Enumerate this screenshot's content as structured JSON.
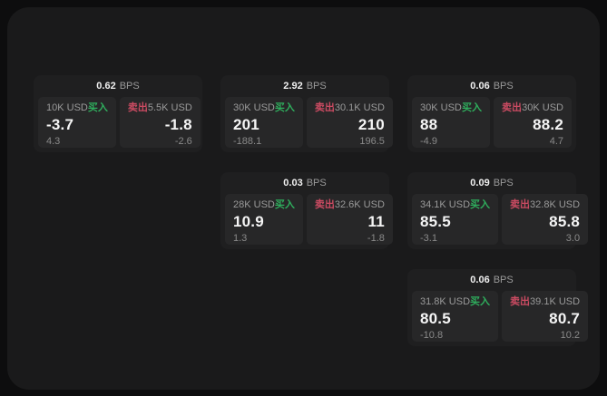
{
  "labels": {
    "bps": "BPS",
    "buy": "买入",
    "sell": "卖出"
  },
  "colors": {
    "page_background": "#0d0d0e",
    "surface": "#1a1a1b",
    "card": "#1f1f20",
    "panel": "#272728",
    "buy_accent": "#2fae5d",
    "sell_accent": "#cb4b62",
    "text_primary": "#f5f5f5",
    "text_secondary": "#9a9a9a"
  },
  "cards": [
    {
      "bps": "0.62",
      "buy": {
        "amount": "10K USD",
        "value": "-3.7",
        "sub": "4.3"
      },
      "sell": {
        "amount": "5.5K USD",
        "value": "-1.8",
        "sub": "-2.6"
      }
    },
    {
      "bps": "2.92",
      "buy": {
        "amount": "30K USD",
        "value": "201",
        "sub": "-188.1"
      },
      "sell": {
        "amount": "30.1K USD",
        "value": "210",
        "sub": "196.5"
      }
    },
    {
      "bps": "0.06",
      "buy": {
        "amount": "30K USD",
        "value": "88",
        "sub": "-4.9"
      },
      "sell": {
        "amount": "30K USD",
        "value": "88.2",
        "sub": "4.7"
      }
    },
    {
      "bps": "0.03",
      "buy": {
        "amount": "28K USD",
        "value": "10.9",
        "sub": "1.3"
      },
      "sell": {
        "amount": "32.6K USD",
        "value": "11",
        "sub": "-1.8"
      }
    },
    {
      "bps": "0.09",
      "buy": {
        "amount": "34.1K USD",
        "value": "85.5",
        "sub": "-3.1"
      },
      "sell": {
        "amount": "32.8K USD",
        "value": "85.8",
        "sub": "3.0"
      }
    },
    {
      "bps": "0.06",
      "buy": {
        "amount": "31.8K USD",
        "value": "80.5",
        "sub": "-10.8"
      },
      "sell": {
        "amount": "39.1K USD",
        "value": "80.7",
        "sub": "10.2"
      }
    }
  ]
}
